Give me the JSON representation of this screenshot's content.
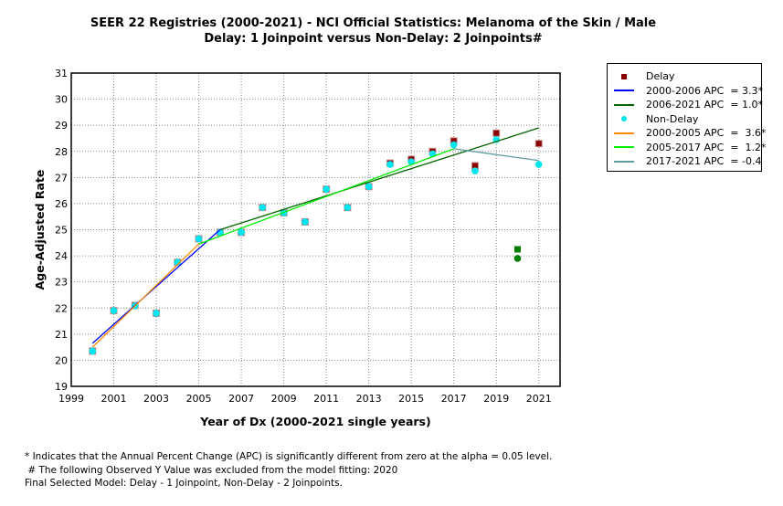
{
  "chart_data": {
    "type": "scatter",
    "title": "SEER 22 Registries (2000-2021) - NCI Official Statistics: Melanoma of the Skin / Male",
    "subtitle": "Delay: 1 Joinpoint  versus  Non-Delay: 2 Joinpoints#",
    "xlabel": "Year of Dx (2000-2021 single years)",
    "ylabel": "Age-Adjusted Rate",
    "xlim": [
      1999,
      2022
    ],
    "ylim": [
      19,
      31
    ],
    "xticks": [
      1999,
      2001,
      2003,
      2005,
      2007,
      2009,
      2011,
      2013,
      2015,
      2017,
      2019,
      2021
    ],
    "yticks": [
      19,
      20,
      21,
      22,
      23,
      24,
      25,
      26,
      27,
      28,
      29,
      30,
      31
    ],
    "grid": true,
    "legend_position": "right",
    "series": [
      {
        "name": "Delay",
        "kind": "points",
        "marker": "square",
        "color": "#8b0000",
        "x": [
          2000,
          2001,
          2002,
          2003,
          2004,
          2005,
          2006,
          2007,
          2008,
          2009,
          2010,
          2011,
          2012,
          2013,
          2014,
          2015,
          2016,
          2017,
          2018,
          2019,
          2021
        ],
        "y": [
          20.35,
          21.9,
          22.1,
          21.8,
          23.75,
          24.65,
          24.9,
          24.9,
          25.85,
          25.65,
          25.3,
          26.55,
          25.85,
          26.65,
          27.55,
          27.7,
          28.0,
          28.4,
          27.45,
          28.7,
          28.3
        ]
      },
      {
        "name": "2000-2006 APC  = 3.3*",
        "kind": "line",
        "color": "#0000ff",
        "x": [
          2000,
          2006
        ],
        "y": [
          20.65,
          25.0
        ]
      },
      {
        "name": "2006-2021 APC  = 1.0*",
        "kind": "line",
        "color": "#006400",
        "x": [
          2006,
          2021
        ],
        "y": [
          25.0,
          28.9
        ]
      },
      {
        "name": "Non-Delay",
        "kind": "points",
        "marker": "circle",
        "color": "#00e5ee",
        "x": [
          2000,
          2001,
          2002,
          2003,
          2004,
          2005,
          2006,
          2007,
          2008,
          2009,
          2010,
          2011,
          2012,
          2013,
          2014,
          2015,
          2016,
          2017,
          2018,
          2019,
          2021
        ],
        "y": [
          20.35,
          21.9,
          22.08,
          21.8,
          23.75,
          24.65,
          24.9,
          24.9,
          25.85,
          25.65,
          25.3,
          26.55,
          25.85,
          26.65,
          27.5,
          27.6,
          27.9,
          28.25,
          27.25,
          28.45,
          27.5
        ]
      },
      {
        "name": "2000-2005 APC  =  3.6*",
        "kind": "line",
        "color": "#ff8c00",
        "x": [
          2000,
          2005
        ],
        "y": [
          20.5,
          24.45
        ]
      },
      {
        "name": "2005-2017 APC  =  1.2*",
        "kind": "line",
        "color": "#00ee00",
        "x": [
          2005,
          2017
        ],
        "y": [
          24.45,
          28.1
        ]
      },
      {
        "name": "2017-2021 APC  = -0.4",
        "kind": "line",
        "color": "#5f9ea0",
        "x": [
          2017,
          2021
        ],
        "y": [
          28.1,
          27.65
        ]
      }
    ],
    "excluded_points": [
      {
        "series": "Delay",
        "marker": "square",
        "color": "#008000",
        "x": 2020,
        "y": 24.25
      },
      {
        "series": "Non-Delay",
        "marker": "circle",
        "color": "#008000",
        "x": 2020,
        "y": 23.9
      }
    ]
  },
  "footnotes": [
    "* Indicates that the Annual Percent Change (APC) is significantly different from zero at the alpha = 0.05 level.",
    " # The following Observed Y Value was excluded from the model fitting: 2020",
    "Final Selected Model: Delay - 1 Joinpoint, Non-Delay - 2 Joinpoints."
  ]
}
